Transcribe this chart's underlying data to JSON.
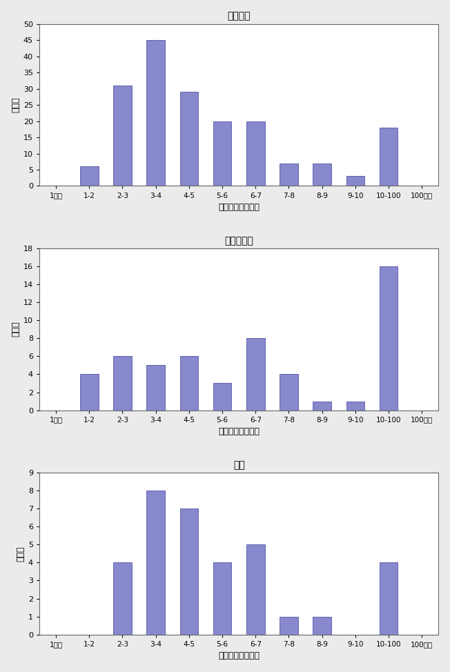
{
  "charts": [
    {
      "title": "一般環境",
      "values": [
        0,
        6,
        31,
        45,
        29,
        20,
        20,
        7,
        7,
        3,
        18,
        0
      ],
      "ylim": [
        0,
        50
      ],
      "yticks": [
        0,
        5,
        10,
        15,
        20,
        25,
        30,
        35,
        40,
        45,
        50
      ]
    },
    {
      "title": "発生源周辺",
      "values": [
        0,
        4,
        6,
        5,
        6,
        3,
        8,
        4,
        1,
        1,
        16,
        0
      ],
      "ylim": [
        0,
        18
      ],
      "yticks": [
        0,
        2,
        4,
        6,
        8,
        10,
        12,
        14,
        16,
        18
      ]
    },
    {
      "title": "沿道",
      "values": [
        0,
        0,
        4,
        8,
        7,
        4,
        5,
        1,
        1,
        0,
        4,
        0
      ],
      "ylim": [
        0,
        9
      ],
      "yticks": [
        0,
        1,
        2,
        3,
        4,
        5,
        6,
        7,
        8,
        9
      ]
    }
  ],
  "categories": [
    "1未満",
    "1-2",
    "2-3",
    "3-4",
    "4-5",
    "5-6",
    "6-7",
    "7-8",
    "8-9",
    "9-10",
    "10-100",
    "100以上"
  ],
  "bar_color": "#8888cc",
  "bar_edge_color": "#5555aa",
  "ylabel": "地点数",
  "xlabel": "濃度（ｎｇ／㎥）",
  "background_color": "#ffffff",
  "figure_background": "#ebebeb"
}
